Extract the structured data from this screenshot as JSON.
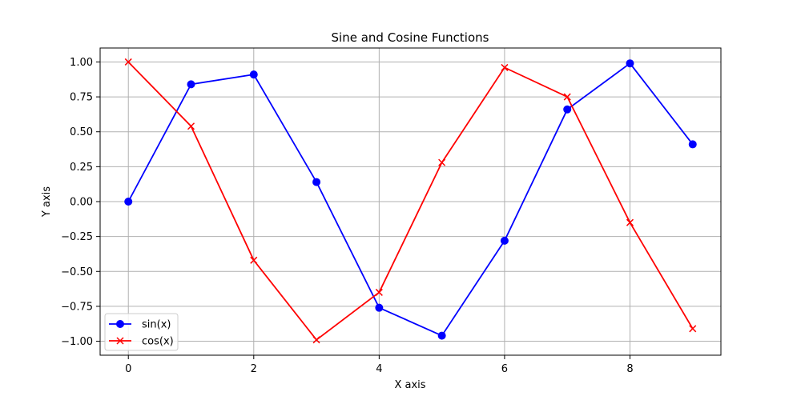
{
  "chart_data": {
    "type": "line",
    "title": "Sine and Cosine Functions",
    "xlabel": "X axis",
    "ylabel": "Y axis",
    "xlim": [
      -0.45,
      9.45
    ],
    "ylim": [
      -1.1,
      1.1
    ],
    "x_ticks": [
      0,
      2,
      4,
      6,
      8
    ],
    "x_tick_labels": [
      "0",
      "2",
      "4",
      "6",
      "8"
    ],
    "y_ticks": [
      1.0,
      0.75,
      0.5,
      0.25,
      0.0,
      -0.25,
      -0.5,
      -0.75,
      -1.0
    ],
    "y_tick_labels": [
      "1.00",
      "0.75",
      "0.50",
      "0.25",
      "0.00",
      "−0.25",
      "−0.50",
      "−0.75",
      "−1.00"
    ],
    "grid": true,
    "legend_position": "lower-left",
    "x": [
      0,
      1,
      2,
      3,
      4,
      5,
      6,
      7,
      8,
      9
    ],
    "series": [
      {
        "name": "sin(x)",
        "color": "#0000ff",
        "marker": "circle",
        "values": [
          0.0,
          0.84,
          0.91,
          0.14,
          -0.76,
          -0.96,
          -0.28,
          0.66,
          0.99,
          0.41
        ]
      },
      {
        "name": "cos(x)",
        "color": "#ff0000",
        "marker": "x",
        "values": [
          1.0,
          0.54,
          -0.42,
          -0.99,
          -0.65,
          0.28,
          0.96,
          0.75,
          -0.15,
          -0.91
        ]
      }
    ]
  }
}
